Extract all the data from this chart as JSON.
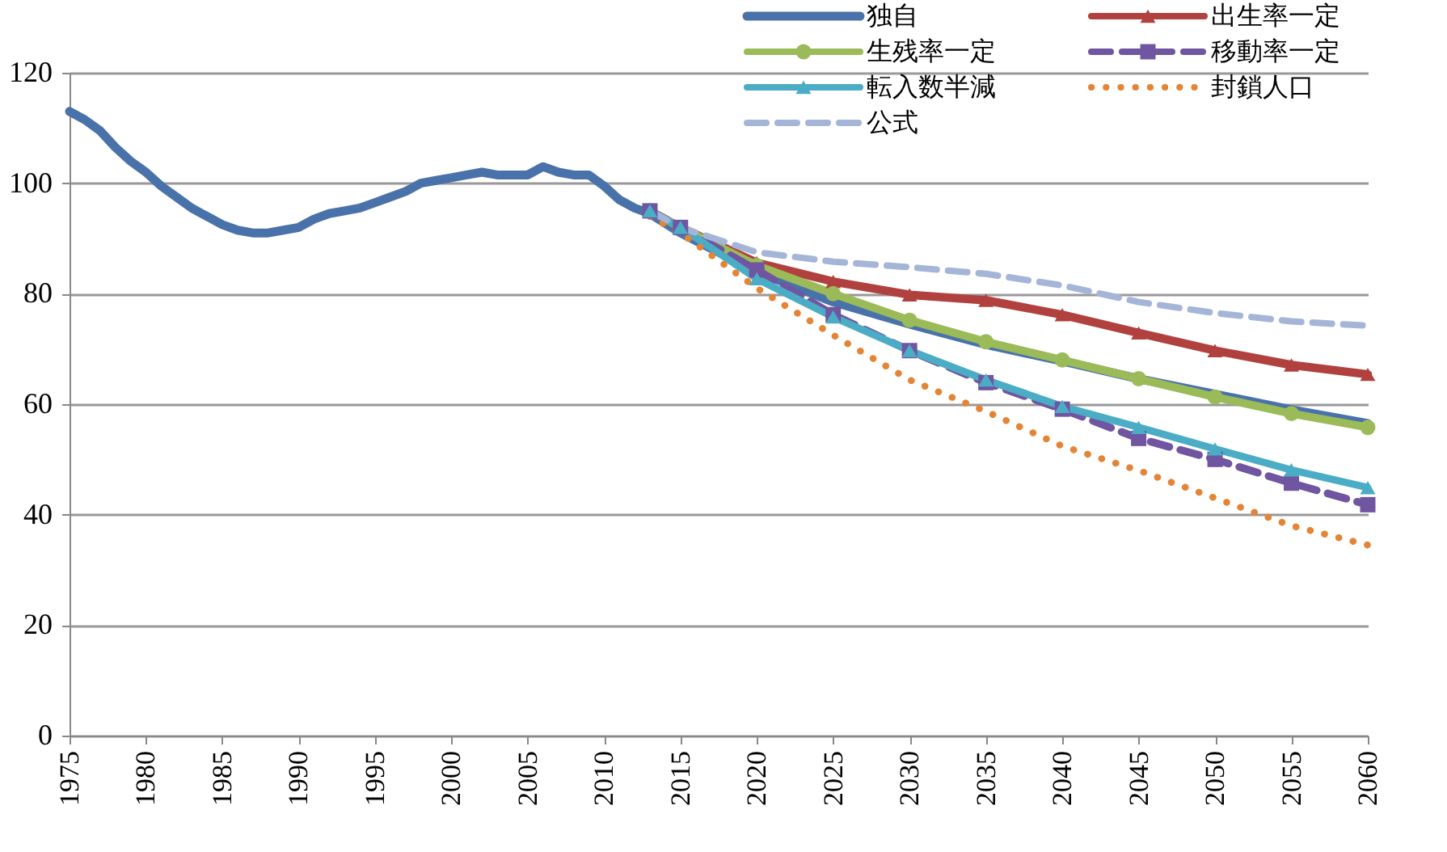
{
  "chart_data": {
    "type": "line",
    "xlim": [
      1975,
      2060
    ],
    "xticks": [
      1975,
      1980,
      1985,
      1990,
      1995,
      2000,
      2005,
      2010,
      2015,
      2020,
      2025,
      2030,
      2035,
      2040,
      2045,
      2050,
      2055,
      2060
    ],
    "ylim": [
      0,
      120
    ],
    "yticks": [
      0,
      20,
      40,
      60,
      80,
      100,
      120
    ],
    "grid": "y",
    "legend": "top right",
    "series": [
      {
        "name": "独自",
        "color": "#4a72aa",
        "marker": "none",
        "line_style": "solid",
        "x": [
          1975,
          1976,
          1977,
          1978,
          1979,
          1980,
          1981,
          1982,
          1983,
          1984,
          1985,
          1986,
          1987,
          1988,
          1989,
          1990,
          1991,
          1992,
          1993,
          1994,
          1995,
          1996,
          1997,
          1998,
          1999,
          2000,
          2001,
          2002,
          2003,
          2004,
          2005,
          2006,
          2007,
          2008,
          2009,
          2010,
          2011,
          2012,
          2013,
          2015,
          2020,
          2025,
          2030,
          2035,
          2040,
          2045,
          2050,
          2055,
          2060
        ],
        "values": [
          113,
          111.5,
          109.5,
          106.5,
          104,
          102,
          99.5,
          97.5,
          95.5,
          94,
          92.5,
          91.5,
          91,
          91,
          91.5,
          92,
          93.5,
          94.5,
          95,
          95.5,
          96.5,
          97.5,
          98.5,
          100,
          100.5,
          101,
          101.5,
          102,
          101.5,
          101.5,
          101.5,
          103,
          102,
          101.5,
          101.5,
          99.5,
          97,
          95.5,
          94.5,
          91,
          84,
          78.5,
          74.5,
          70.8,
          67.8,
          64.6,
          61.8,
          59,
          56.5
        ]
      },
      {
        "name": "出生率一定",
        "color": "#b0413e",
        "marker": "triangle",
        "line_style": "solid",
        "x": [
          2013,
          2015,
          2020,
          2025,
          2030,
          2035,
          2040,
          2045,
          2050,
          2055,
          2060
        ],
        "values": [
          95,
          92,
          85.6,
          82.2,
          79.8,
          78.8,
          76.2,
          72.9,
          69.7,
          67.1,
          65.4
        ]
      },
      {
        "name": "生残率一定",
        "color": "#9bbb59",
        "marker": "circle",
        "line_style": "solid",
        "x": [
          2013,
          2015,
          2020,
          2025,
          2030,
          2035,
          2040,
          2045,
          2050,
          2055,
          2060
        ],
        "values": [
          95,
          92,
          85.1,
          80,
          75.2,
          71.3,
          68,
          64.6,
          61.3,
          58.3,
          55.8
        ]
      },
      {
        "name": "移動率一定",
        "color": "#7055a0",
        "marker": "square",
        "line_style": "dashed",
        "x": [
          2013,
          2015,
          2020,
          2025,
          2030,
          2035,
          2040,
          2045,
          2050,
          2055,
          2060
        ],
        "values": [
          95,
          92,
          84.3,
          76.2,
          69.7,
          63.9,
          59.1,
          53.8,
          50,
          45.7,
          41.8
        ]
      },
      {
        "name": "転入数半減",
        "color": "#4bacc6",
        "marker": "triangle",
        "line_style": "solid",
        "x": [
          2013,
          2015,
          2020,
          2025,
          2030,
          2035,
          2040,
          2045,
          2050,
          2055,
          2060
        ],
        "values": [
          95,
          92,
          82.7,
          75.8,
          69.7,
          64.4,
          59.6,
          55.8,
          51.9,
          48.1,
          44.9
        ]
      },
      {
        "name": "封鎖人口",
        "color": "#e48435",
        "marker": "none",
        "line_style": "dotted",
        "x": [
          2013,
          2015,
          2020,
          2025,
          2030,
          2035,
          2040,
          2045,
          2050,
          2055,
          2060
        ],
        "values": [
          94,
          91,
          81,
          72.5,
          64.4,
          58.7,
          52.4,
          48,
          43,
          38,
          34.5
        ]
      },
      {
        "name": "公式",
        "color": "#a5b5d8",
        "marker": "none",
        "line_style": "dashed",
        "x": [
          2013,
          2015,
          2020,
          2025,
          2030,
          2035,
          2040,
          2045,
          2050,
          2055,
          2060
        ],
        "values": [
          95,
          92,
          87.5,
          85.8,
          84.8,
          83.6,
          81.5,
          78.5,
          76.5,
          75,
          74.2
        ]
      }
    ]
  }
}
